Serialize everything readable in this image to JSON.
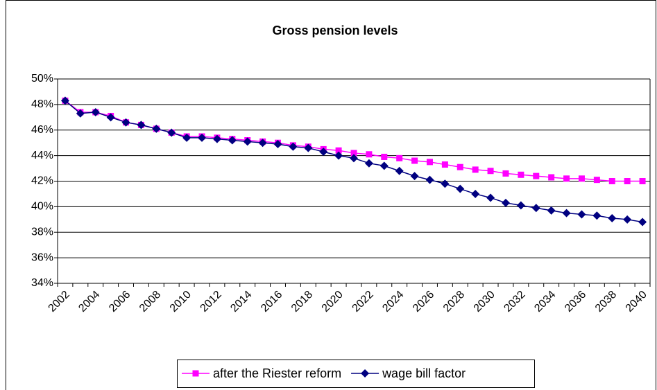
{
  "chart_data": {
    "type": "line",
    "title": "Gross pension levels",
    "categories": [
      "2002",
      null,
      "2004",
      null,
      "2006",
      null,
      "2008",
      null,
      "2010",
      null,
      "2012",
      null,
      "2014",
      null,
      "2016",
      null,
      "2018",
      null,
      "2020",
      null,
      "2022",
      null,
      "2024",
      null,
      "2026",
      null,
      "2028",
      null,
      "2030",
      null,
      "2032",
      null,
      "2034",
      null,
      "2036",
      null,
      "2038",
      null,
      "2040"
    ],
    "series": [
      {
        "name": "after the Riester reform",
        "color": "#ff00ff",
        "marker": "square",
        "values": [
          48.3,
          47.4,
          47.4,
          47.1,
          46.6,
          46.4,
          46.1,
          45.8,
          45.5,
          45.5,
          45.4,
          45.3,
          45.2,
          45.1,
          45.0,
          44.8,
          44.7,
          44.5,
          44.4,
          44.2,
          44.1,
          43.9,
          43.8,
          43.6,
          43.5,
          43.3,
          43.1,
          42.9,
          42.8,
          42.6,
          42.5,
          42.4,
          42.3,
          42.2,
          42.2,
          42.1,
          42.0,
          42.0,
          42.0
        ]
      },
      {
        "name": "wage bill factor",
        "color": "#000080",
        "marker": "diamond",
        "values": [
          48.3,
          47.3,
          47.4,
          47.0,
          46.6,
          46.4,
          46.1,
          45.8,
          45.4,
          45.4,
          45.3,
          45.2,
          45.1,
          45.0,
          44.9,
          44.7,
          44.6,
          44.3,
          44.0,
          43.8,
          43.4,
          43.2,
          42.8,
          42.4,
          42.1,
          41.8,
          41.4,
          41.0,
          40.7,
          40.3,
          40.1,
          39.9,
          39.7,
          39.5,
          39.4,
          39.3,
          39.1,
          39.0,
          38.8
        ]
      }
    ],
    "ylim": [
      34,
      50
    ],
    "yticks": [
      {
        "value": 34,
        "label": "34%"
      },
      {
        "value": 36,
        "label": "36%"
      },
      {
        "value": 38,
        "label": "38%"
      },
      {
        "value": 40,
        "label": "40%"
      },
      {
        "value": 42,
        "label": "42%"
      },
      {
        "value": 44,
        "label": "44%"
      },
      {
        "value": 46,
        "label": "46%"
      },
      {
        "value": 48,
        "label": "48%"
      },
      {
        "value": 50,
        "label": "50%"
      }
    ],
    "grid": true,
    "legend": "bottom"
  }
}
